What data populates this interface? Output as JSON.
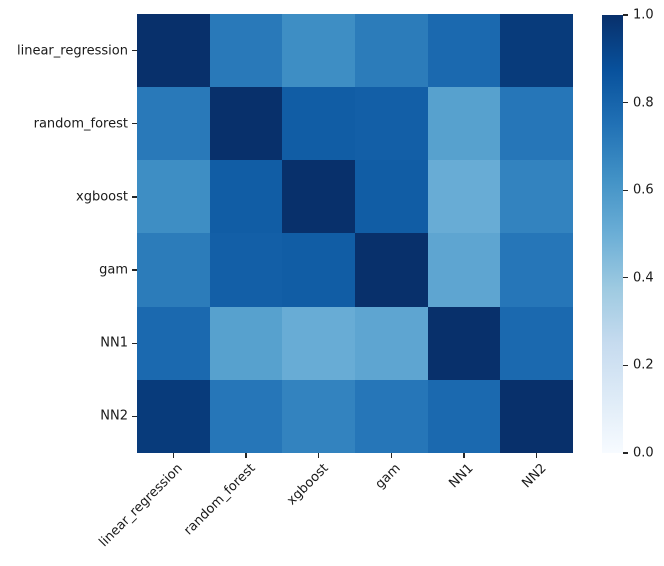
{
  "chart_data": {
    "type": "heatmap",
    "title": "",
    "xlabel": "",
    "ylabel": "",
    "categories": [
      "linear_regression",
      "random_forest",
      "xgboost",
      "gam",
      "NN1",
      "NN2"
    ],
    "matrix": [
      [
        1.0,
        0.72,
        0.64,
        0.71,
        0.78,
        0.96
      ],
      [
        0.72,
        1.0,
        0.83,
        0.82,
        0.56,
        0.73
      ],
      [
        0.64,
        0.83,
        1.0,
        0.83,
        0.51,
        0.68
      ],
      [
        0.71,
        0.82,
        0.83,
        1.0,
        0.54,
        0.73
      ],
      [
        0.78,
        0.56,
        0.51,
        0.54,
        1.0,
        0.78
      ],
      [
        0.96,
        0.73,
        0.68,
        0.73,
        0.78,
        1.0
      ]
    ],
    "value_range": [
      0.0,
      1.0
    ],
    "colormap": "Blues",
    "colormap_stops": [
      "#f7fbff",
      "#deebf7",
      "#c6dbef",
      "#9ecae1",
      "#6baed6",
      "#4292c6",
      "#2171b5",
      "#08519c",
      "#08306b"
    ],
    "grid": false,
    "colorbar": {
      "position": "right",
      "tick_labels": [
        "1.0",
        "0.8",
        "0.6",
        "0.4",
        "0.2",
        "0.0"
      ],
      "tick_values": [
        1.0,
        0.8,
        0.6,
        0.4,
        0.2,
        0.0
      ]
    },
    "axis_tick_color": "#262626",
    "text_color": "#1a1a1a",
    "x_tick_rotation_deg": 45
  }
}
